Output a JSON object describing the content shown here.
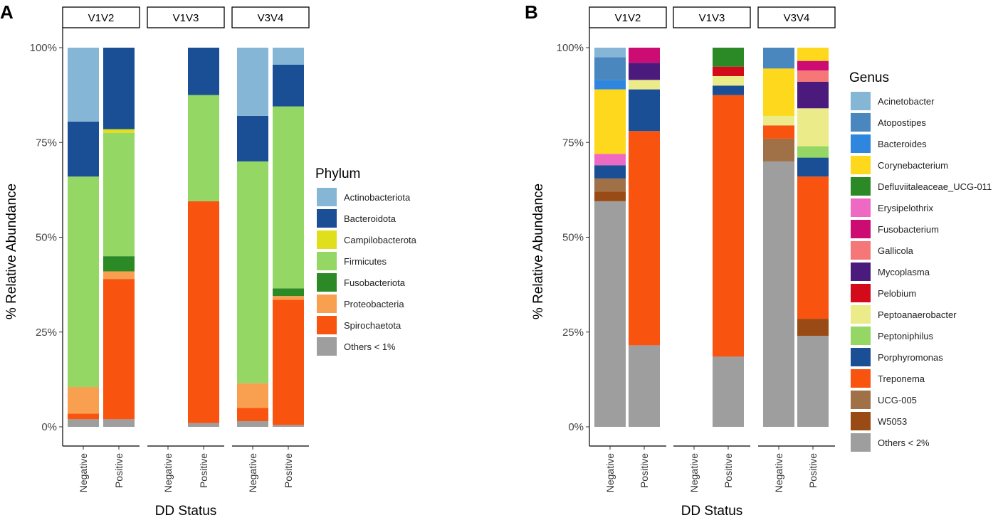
{
  "colors": {
    "Actinobacteriota": "#85b6d6",
    "Bacteroidota": "#1a4f96",
    "Campilobacterota": "#dfdf1e",
    "Firmicutes": "#95d764",
    "Fusobacteriota": "#2b8a26",
    "Proteobacteria": "#f9a050",
    "Spirochaetota": "#f8530f",
    "Others < 1%": "#9e9e9e",
    "Acinetobacter": "#85b6d6",
    "Atopostipes": "#4a87bf",
    "Bacteroides": "#2e86de",
    "Corynebacterium": "#fdd81c",
    "Defluviitaleaceae_UCG-011": "#2b8a26",
    "Erysipelothrix": "#ee6ac2",
    "Fusobacterium": "#cc0b73",
    "Gallicola": "#f57777",
    "Mycoplasma": "#4a1a7d",
    "Pelobium": "#d20a1a",
    "Peptoanaerobacter": "#ebeb8a",
    "Peptoniphilus": "#95d764",
    "Porphyromonas": "#1a4f96",
    "Treponema": "#f8530f",
    "UCG-005": "#a07046",
    "W5053": "#9a4a14",
    "Others < 2%": "#9e9e9e"
  },
  "chart_data": [
    {
      "panel_label": "A",
      "type": "bar",
      "stacked": true,
      "facets": [
        "V1V2",
        "V1V3",
        "V3V4"
      ],
      "categories": [
        "Negative",
        "Positive"
      ],
      "xlabel": "DD Status",
      "ylabel": "% Relative Abundance",
      "ylim": [
        0,
        100
      ],
      "y_ticks": [
        "0%",
        "25%",
        "50%",
        "75%",
        "100%"
      ],
      "legend_title": "Phylum",
      "legend": [
        "Actinobacteriota",
        "Bacteroidota",
        "Campilobacterota",
        "Firmicutes",
        "Fusobacteriota",
        "Proteobacteria",
        "Spirochaetota",
        "Others < 1%"
      ],
      "stack_order": [
        "Others < 1%",
        "Spirochaetota",
        "Proteobacteria",
        "Fusobacteriota",
        "Firmicutes",
        "Campilobacterota",
        "Bacteroidota",
        "Actinobacteriota"
      ],
      "bars": {
        "V1V2": {
          "Negative": {
            "Others < 1%": 2,
            "Spirochaetota": 1.5,
            "Proteobacteria": 7,
            "Fusobacteriota": 0,
            "Firmicutes": 55.5,
            "Campilobacterota": 0,
            "Bacteroidota": 14.5,
            "Actinobacteriota": 19.5
          },
          "Positive": {
            "Others < 1%": 2,
            "Spirochaetota": 37,
            "Proteobacteria": 2,
            "Fusobacteriota": 4,
            "Firmicutes": 32.5,
            "Campilobacterota": 1,
            "Bacteroidota": 21.5,
            "Actinobacteriota": 0
          }
        },
        "V1V3": {
          "Negative": null,
          "Positive": {
            "Others < 1%": 1,
            "Spirochaetota": 58.5,
            "Proteobacteria": 0,
            "Fusobacteriota": 0,
            "Firmicutes": 28,
            "Campilobacterota": 0,
            "Bacteroidota": 12.5,
            "Actinobacteriota": 0
          }
        },
        "V3V4": {
          "Negative": {
            "Others < 1%": 1.5,
            "Spirochaetota": 3.5,
            "Proteobacteria": 6.5,
            "Fusobacteriota": 0,
            "Firmicutes": 58.5,
            "Campilobacterota": 0,
            "Bacteroidota": 12,
            "Actinobacteriota": 18
          },
          "Positive": {
            "Others < 1%": 0.5,
            "Spirochaetota": 33,
            "Proteobacteria": 1,
            "Fusobacteriota": 2,
            "Firmicutes": 48,
            "Campilobacterota": 0,
            "Bacteroidota": 11,
            "Actinobacteriota": 4.5
          }
        }
      }
    },
    {
      "panel_label": "B",
      "type": "bar",
      "stacked": true,
      "facets": [
        "V1V2",
        "V1V3",
        "V3V4"
      ],
      "categories": [
        "Negative",
        "Positive"
      ],
      "xlabel": "DD Status",
      "ylabel": "% Relative Abundance",
      "ylim": [
        0,
        100
      ],
      "y_ticks": [
        "0%",
        "25%",
        "50%",
        "75%",
        "100%"
      ],
      "legend_title": "Genus",
      "legend": [
        "Acinetobacter",
        "Atopostipes",
        "Bacteroides",
        "Corynebacterium",
        "Defluviitaleaceae_UCG-011",
        "Erysipelothrix",
        "Fusobacterium",
        "Gallicola",
        "Mycoplasma",
        "Pelobium",
        "Peptoanaerobacter",
        "Peptoniphilus",
        "Porphyromonas",
        "Treponema",
        "UCG-005",
        "W5053",
        "Others < 2%"
      ],
      "stack_order": [
        "Others < 2%",
        "W5053",
        "UCG-005",
        "Treponema",
        "Porphyromonas",
        "Peptoniphilus",
        "Peptoanaerobacter",
        "Pelobium",
        "Mycoplasma",
        "Gallicola",
        "Fusobacterium",
        "Erysipelothrix",
        "Defluviitaleaceae_UCG-011",
        "Corynebacterium",
        "Bacteroides",
        "Atopostipes",
        "Acinetobacter"
      ],
      "bars": {
        "V1V2": {
          "Negative": {
            "Others < 2%": 59.5,
            "W5053": 2.5,
            "UCG-005": 3.5,
            "Porphyromonas": 3.5,
            "Erysipelothrix": 3,
            "Corynebacterium": 17,
            "Bacteroides": 2.5,
            "Atopostipes": 6,
            "Acinetobacter": 2.5
          },
          "Positive": {
            "Others < 2%": 21.5,
            "Treponema": 56.5,
            "Porphyromonas": 11,
            "Peptoanaerobacter": 2.5,
            "Mycoplasma": 4.5,
            "Fusobacterium": 4
          }
        },
        "V1V3": {
          "Negative": null,
          "Positive": {
            "Others < 2%": 18.5,
            "Treponema": 69,
            "Porphyromonas": 2.5,
            "Peptoanaerobacter": 2.5,
            "Pelobium": 2.5,
            "Defluviitaleaceae_UCG-011": 5
          }
        },
        "V3V4": {
          "Negative": {
            "Others < 2%": 70,
            "UCG-005": 6,
            "Treponema": 3.5,
            "Peptoanaerobacter": 2.5,
            "Corynebacterium": 12.5,
            "Atopostipes": 5.5
          },
          "Positive": {
            "Others < 2%": 24,
            "W5053": 4.5,
            "Treponema": 37.5,
            "Porphyromonas": 5,
            "Peptoniphilus": 3,
            "Peptoanaerobacter": 10,
            "Mycoplasma": 7,
            "Gallicola": 3,
            "Fusobacterium": 2.5,
            "Corynebacterium": 3.5
          }
        }
      }
    }
  ]
}
